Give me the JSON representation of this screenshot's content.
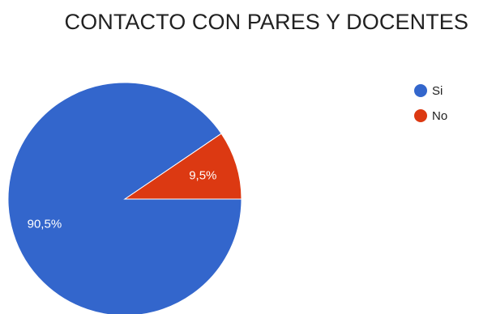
{
  "chart_data": {
    "type": "pie",
    "title": "CONTACTO CON PARES Y DOCENTES",
    "slices": [
      {
        "label": "Si",
        "value": 90.5,
        "display": "90,5%",
        "color": "#3366cc"
      },
      {
        "label": "No",
        "value": 9.5,
        "display": "9,5%",
        "color": "#dc3912"
      }
    ],
    "legend_position": "top-right",
    "start_angle": "3 o'clock, counter-clockwise for first slice end"
  }
}
